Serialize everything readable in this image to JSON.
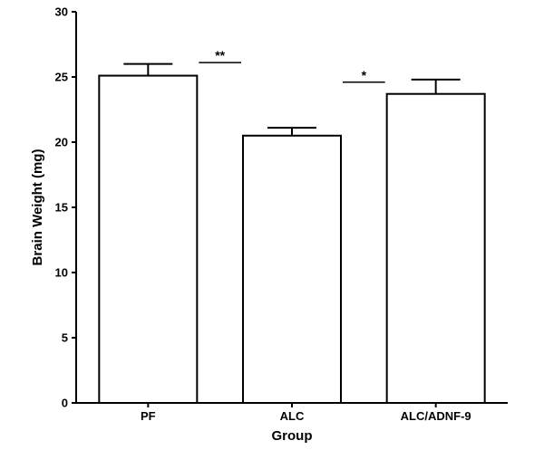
{
  "chart_data": {
    "type": "bar",
    "xlabel": "Group",
    "ylabel": "Brain Weight (mg)",
    "categories": [
      "PF",
      "ALC",
      "ALC/ADNF-9"
    ],
    "values": [
      25.1,
      20.5,
      23.7
    ],
    "error": [
      0.9,
      0.6,
      1.1
    ],
    "ylim": [
      0,
      30
    ],
    "yticks": [
      "0",
      "5",
      "10",
      "15",
      "20",
      "25",
      "30"
    ],
    "grid": false,
    "significance": [
      {
        "from": "PF",
        "to": "ALC",
        "label": "**",
        "y": 26.1
      },
      {
        "from": "ALC",
        "to": "ALC/ADNF-9",
        "label": "*",
        "y": 24.6
      }
    ],
    "colors": {
      "bar_fill": "#ffffff",
      "bar_stroke": "#000000",
      "axis": "#000000"
    }
  }
}
